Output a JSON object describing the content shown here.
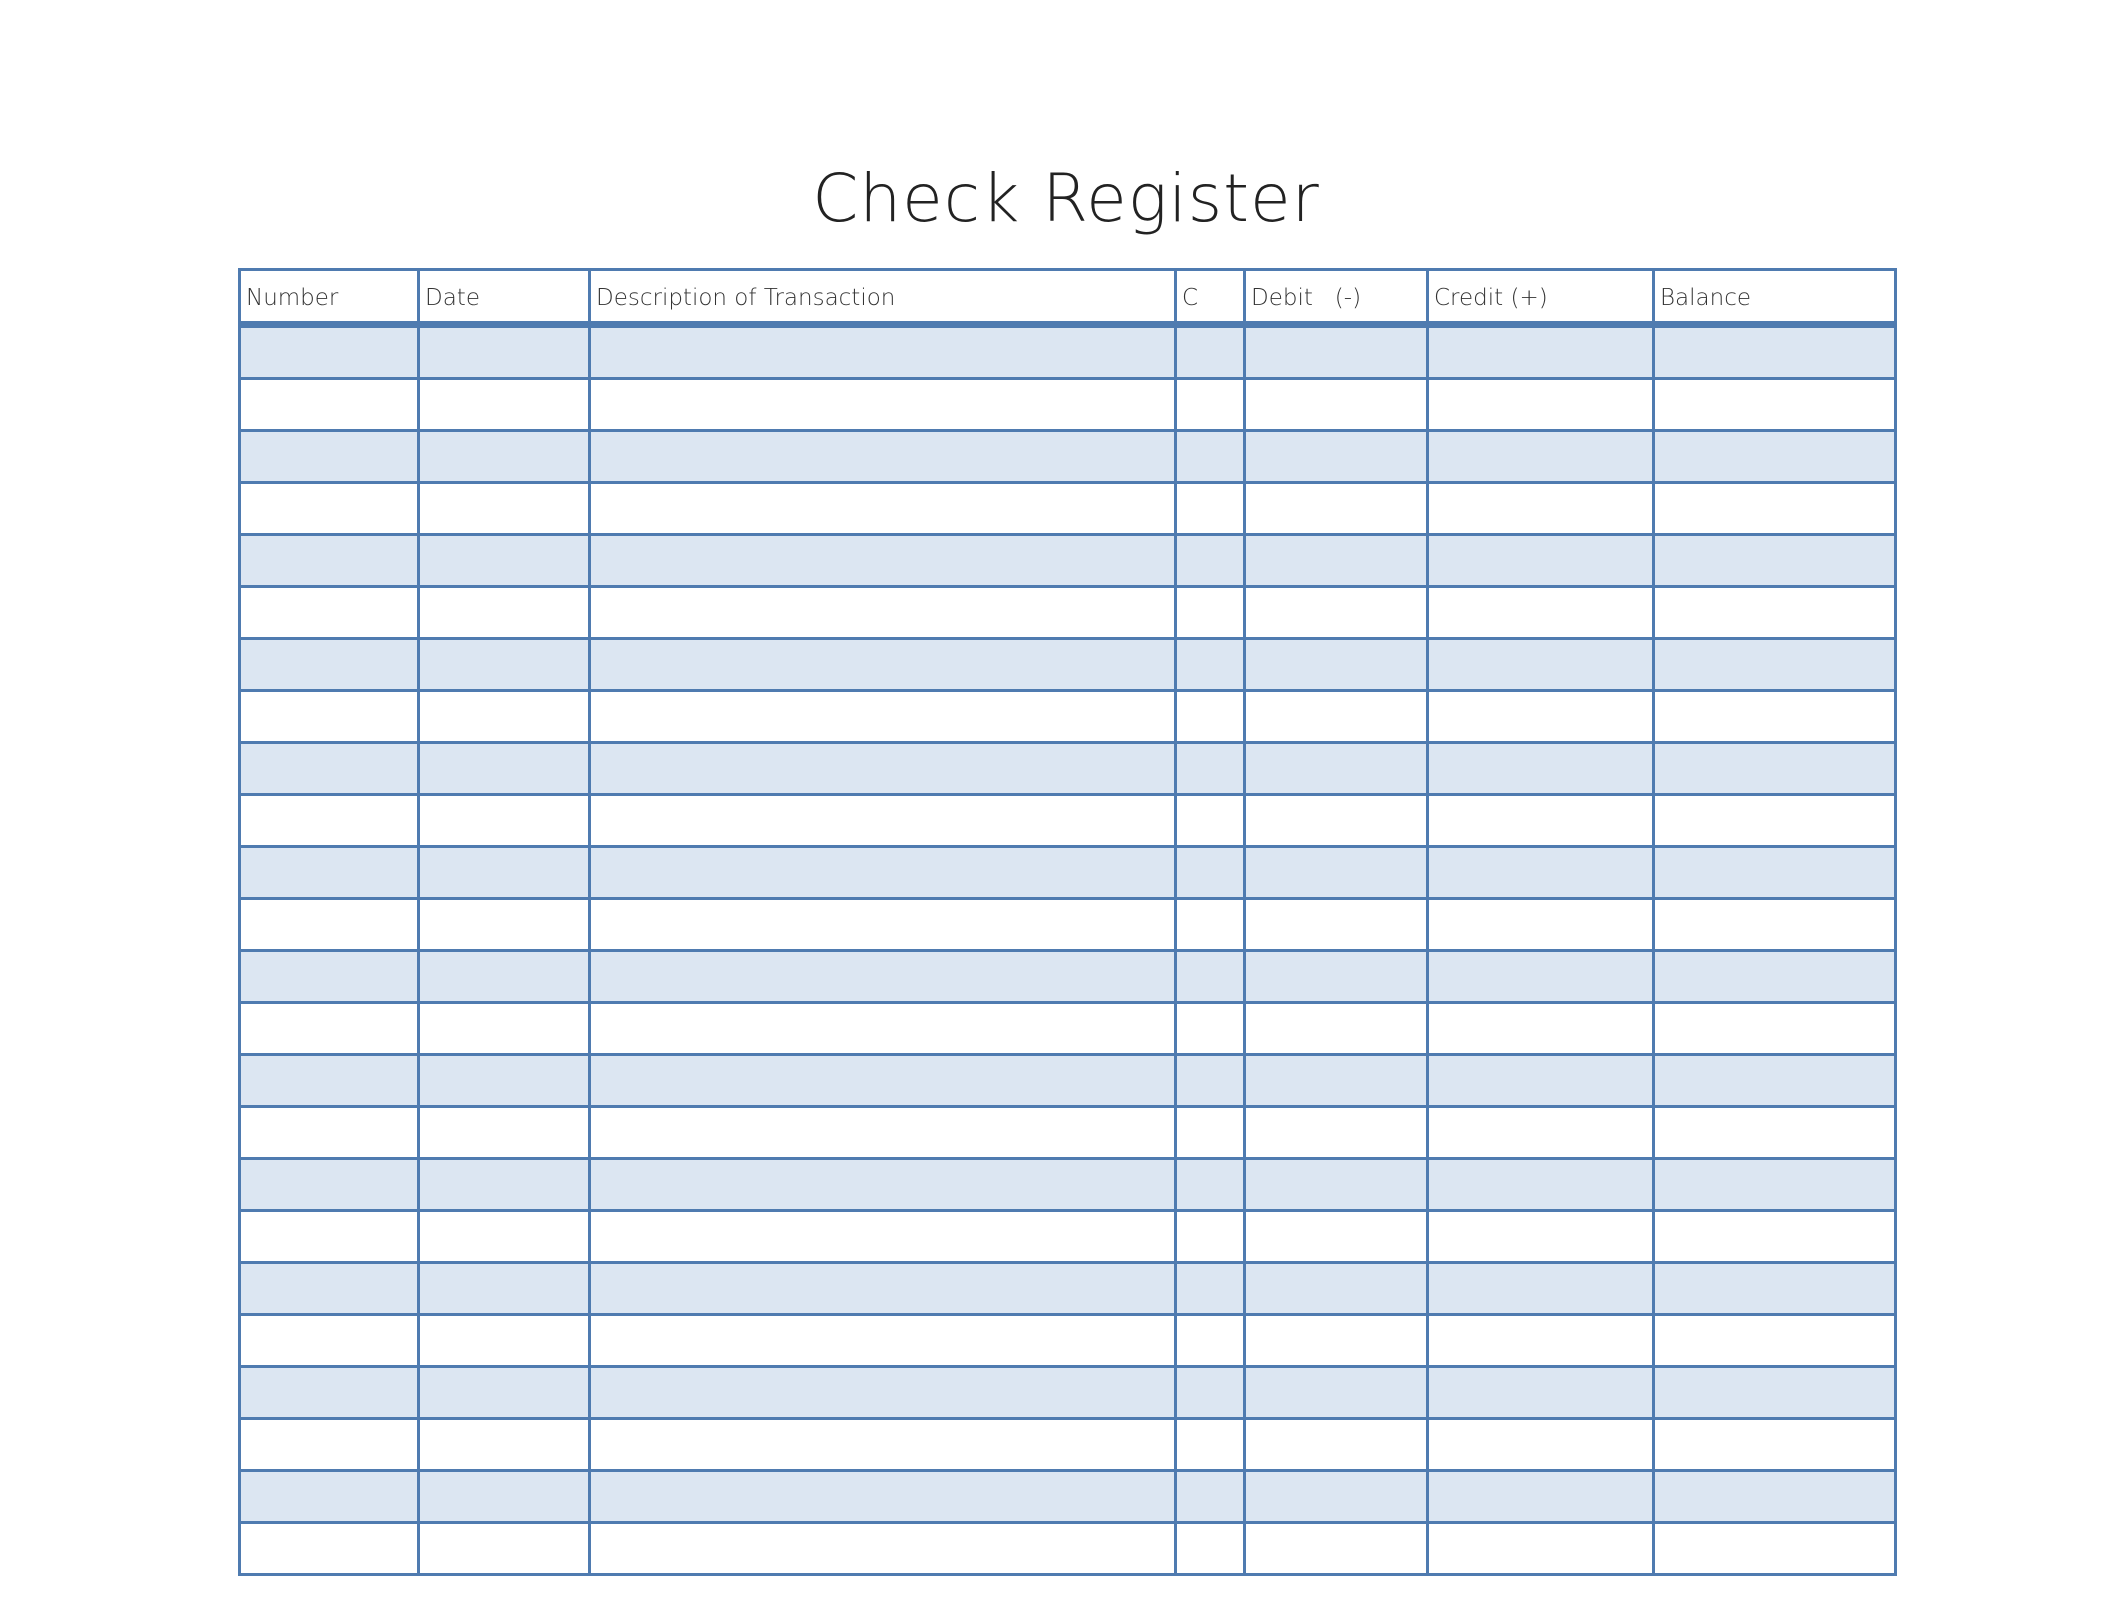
{
  "title": "Check Register",
  "columns": [
    "Number",
    "Date",
    "Description of Transaction",
    "C",
    "Debit   (-)",
    "Credit (+)",
    "Balance"
  ],
  "colors": {
    "border": "#4f7bb0",
    "shade": "#dce6f2"
  },
  "row_count_visible": 24
}
